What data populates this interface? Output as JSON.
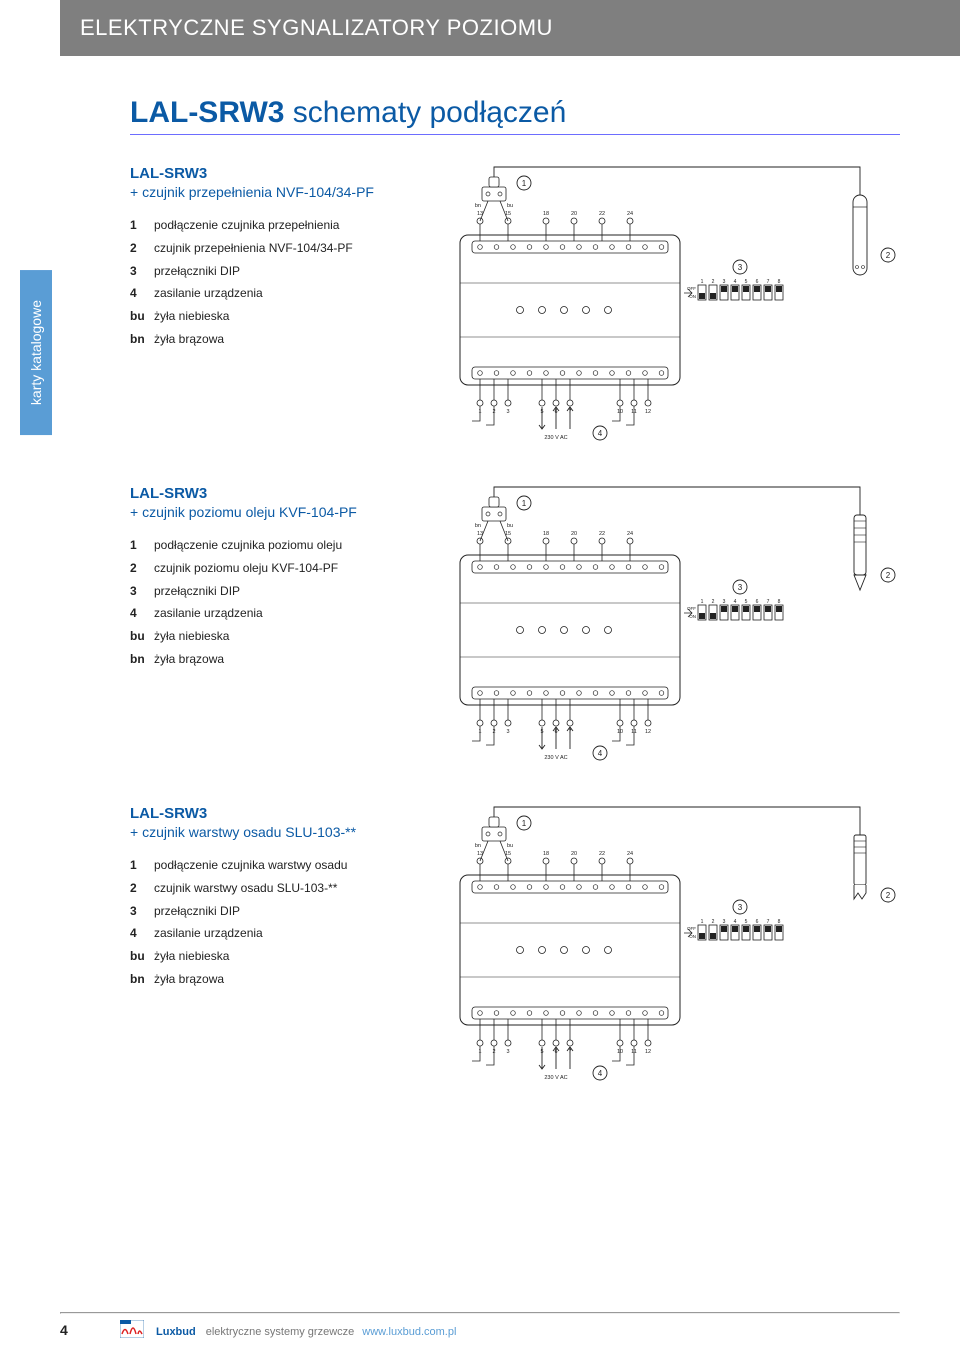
{
  "header": {
    "title": "ELEKTRYCZNE SYGNALIZATORY POZIOMU"
  },
  "side_tab": "karty katalogowe",
  "page_title": {
    "bold": "LAL-SRW3",
    "rest": " schematy podłączeń"
  },
  "sections": [
    {
      "subhead": "LAL-SRW3",
      "subhead_plus": "+ czujnik przepełnienia NVF-104/34-PF",
      "legend": [
        {
          "k": "1",
          "v": "podłączenie czujnika przepełnienia"
        },
        {
          "k": "2",
          "v": "czujnik przepełnienia NVF-104/34-PF"
        },
        {
          "k": "3",
          "v": "przełączniki DIP"
        },
        {
          "k": "4",
          "v": "zasilanie urządzenia"
        },
        {
          "k": "bu",
          "v": "żyła niebieska"
        },
        {
          "k": "bn",
          "v": "żyła brązowa"
        }
      ],
      "diagram": {
        "top_terminals": [
          "13",
          "15",
          "18",
          "20",
          "22",
          "24"
        ],
        "bot_terminals_l": [
          "1",
          "2",
          "3"
        ],
        "bot_terminals_m": [
          "5",
          "6",
          "7"
        ],
        "bot_terminals_r": [
          "10",
          "11",
          "12"
        ],
        "dip_labels": [
          "1",
          "2",
          "3",
          "4",
          "5",
          "6",
          "7",
          "8"
        ],
        "dip_off": "OFF",
        "dip_on": "ON",
        "ac_label": "230 V AC",
        "wire_bn": "bn",
        "wire_bu": "bu",
        "callouts": {
          "c1": "1",
          "c2": "2",
          "c3": "3",
          "c4": "4"
        },
        "sensor_shape": "round"
      }
    },
    {
      "subhead": "LAL-SRW3",
      "subhead_plus": "+ czujnik poziomu oleju KVF-104-PF",
      "legend": [
        {
          "k": "1",
          "v": "podłączenie czujnika poziomu oleju"
        },
        {
          "k": "2",
          "v": "czujnik poziomu oleju KVF-104-PF"
        },
        {
          "k": "3",
          "v": "przełączniki DIP"
        },
        {
          "k": "4",
          "v": "zasilanie urządzenia"
        },
        {
          "k": "bu",
          "v": "żyła niebieska"
        },
        {
          "k": "bn",
          "v": "żyła brązowa"
        }
      ],
      "diagram": {
        "top_terminals": [
          "13",
          "15",
          "18",
          "20",
          "22",
          "24"
        ],
        "bot_terminals_l": [
          "1",
          "2",
          "3"
        ],
        "bot_terminals_m": [
          "5",
          "6",
          "7"
        ],
        "bot_terminals_r": [
          "10",
          "11",
          "12"
        ],
        "dip_labels": [
          "1",
          "2",
          "3",
          "4",
          "5",
          "6",
          "7",
          "8"
        ],
        "dip_off": "OFF",
        "dip_on": "ON",
        "ac_label": "230 V AC",
        "wire_bn": "bn",
        "wire_bu": "bu",
        "callouts": {
          "c1": "1",
          "c2": "2",
          "c3": "3",
          "c4": "4"
        },
        "sensor_shape": "torpedo"
      }
    },
    {
      "subhead": "LAL-SRW3",
      "subhead_plus": "+ czujnik warstwy osadu SLU-103-**",
      "legend": [
        {
          "k": "1",
          "v": "podłączenie czujnika warstwy osadu"
        },
        {
          "k": "2",
          "v": "czujnik warstwy osadu SLU-103-**"
        },
        {
          "k": "3",
          "v": "przełączniki DIP"
        },
        {
          "k": "4",
          "v": "zasilanie urządzenia"
        },
        {
          "k": "bu",
          "v": "żyła niebieska"
        },
        {
          "k": "bn",
          "v": "żyła brązowa"
        }
      ],
      "diagram": {
        "top_terminals": [
          "13",
          "15",
          "18",
          "20",
          "22",
          "24"
        ],
        "bot_terminals_l": [
          "1",
          "2",
          "3"
        ],
        "bot_terminals_m": [
          "5",
          "6",
          "7"
        ],
        "bot_terminals_r": [
          "10",
          "11",
          "12"
        ],
        "dip_labels": [
          "1",
          "2",
          "3",
          "4",
          "5",
          "6",
          "7",
          "8"
        ],
        "dip_off": "OFF",
        "dip_on": "ON",
        "ac_label": "230 V AC",
        "wire_bn": "bn",
        "wire_bu": "bu",
        "callouts": {
          "c1": "1",
          "c2": "2",
          "c3": "3",
          "c4": "4"
        },
        "sensor_shape": "fork"
      }
    }
  ],
  "footer": {
    "page": "4",
    "brand": "Luxbud",
    "tag": "elektryczne systemy grzewcze",
    "url": "www.luxbud.com.pl"
  },
  "colors": {
    "header_bg": "#7f7f7f",
    "accent_blue": "#0b5aa5",
    "light_blue": "#5a9dd5",
    "rule_blue": "#6d6dff",
    "stroke": "#222222"
  }
}
